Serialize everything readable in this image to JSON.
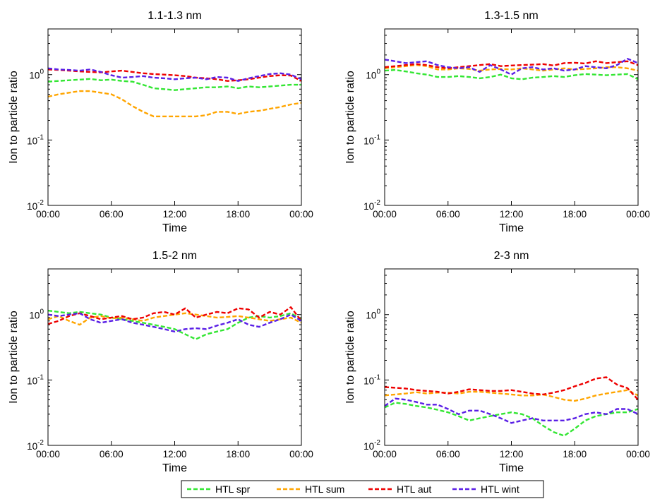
{
  "chart_data": [
    {
      "type": "line",
      "title": "1.1-1.3 nm",
      "xlabel": "Time",
      "ylabel": "Ion to particle ratio",
      "yscale": "log",
      "ylim": [
        0.01,
        5
      ],
      "xlim": [
        0,
        24
      ],
      "xticks": [
        0,
        6,
        12,
        18,
        24
      ],
      "xtick_labels": [
        "00:00",
        "06:00",
        "12:00",
        "18:00",
        "00:00"
      ],
      "yticks": [
        0.01,
        0.1,
        1
      ],
      "grid": false,
      "series": [
        {
          "name": "HTL spr",
          "x": [
            0,
            1,
            2,
            3,
            4,
            5,
            6,
            7,
            8,
            9,
            10,
            11,
            12,
            13,
            14,
            15,
            16,
            17,
            18,
            19,
            20,
            21,
            22,
            23,
            24
          ],
          "values": [
            0.78,
            0.8,
            0.82,
            0.84,
            0.86,
            0.82,
            0.84,
            0.8,
            0.78,
            0.7,
            0.62,
            0.6,
            0.58,
            0.6,
            0.62,
            0.64,
            0.64,
            0.66,
            0.62,
            0.66,
            0.64,
            0.66,
            0.68,
            0.7,
            0.7
          ]
        },
        {
          "name": "HTL sum",
          "x": [
            0,
            1,
            2,
            3,
            4,
            5,
            6,
            7,
            8,
            9,
            10,
            11,
            12,
            13,
            14,
            15,
            16,
            17,
            18,
            19,
            20,
            21,
            22,
            23,
            24
          ],
          "values": [
            0.46,
            0.5,
            0.53,
            0.56,
            0.56,
            0.53,
            0.5,
            0.42,
            0.33,
            0.27,
            0.23,
            0.23,
            0.23,
            0.23,
            0.23,
            0.24,
            0.27,
            0.27,
            0.25,
            0.27,
            0.28,
            0.3,
            0.32,
            0.35,
            0.37
          ]
        },
        {
          "name": "HTL aut",
          "x": [
            0,
            1,
            2,
            3,
            4,
            5,
            6,
            7,
            8,
            9,
            10,
            11,
            12,
            13,
            14,
            15,
            16,
            17,
            18,
            19,
            20,
            21,
            22,
            23,
            24
          ],
          "values": [
            1.2,
            1.18,
            1.15,
            1.12,
            1.1,
            1.08,
            1.12,
            1.15,
            1.1,
            1.05,
            1.02,
            1.0,
            0.98,
            0.95,
            0.9,
            0.88,
            0.85,
            0.8,
            0.82,
            0.85,
            0.9,
            0.95,
            0.98,
            0.97,
            0.8
          ]
        },
        {
          "name": "HTL wint",
          "x": [
            0,
            1,
            2,
            3,
            4,
            5,
            6,
            7,
            8,
            9,
            10,
            11,
            12,
            13,
            14,
            15,
            16,
            17,
            18,
            19,
            20,
            21,
            22,
            23,
            24
          ],
          "values": [
            1.25,
            1.2,
            1.18,
            1.15,
            1.2,
            1.1,
            0.98,
            0.9,
            0.92,
            0.95,
            0.9,
            0.88,
            0.85,
            0.88,
            0.9,
            0.85,
            0.92,
            0.9,
            0.8,
            0.88,
            0.95,
            1.02,
            1.05,
            1.0,
            0.85
          ]
        }
      ]
    },
    {
      "type": "line",
      "title": "1.3-1.5 nm",
      "xlabel": "Time",
      "ylabel": "Ion to particle ratio",
      "yscale": "log",
      "ylim": [
        0.01,
        5
      ],
      "xlim": [
        0,
        24
      ],
      "xticks": [
        0,
        6,
        12,
        18,
        24
      ],
      "xtick_labels": [
        "00:00",
        "06:00",
        "12:00",
        "18:00",
        "00:00"
      ],
      "yticks": [
        0.01,
        0.1,
        1
      ],
      "grid": false,
      "series": [
        {
          "name": "HTL spr",
          "x": [
            0,
            1,
            2,
            3,
            4,
            5,
            6,
            7,
            8,
            9,
            10,
            11,
            12,
            13,
            14,
            15,
            16,
            17,
            18,
            19,
            20,
            21,
            22,
            23,
            24
          ],
          "values": [
            1.15,
            1.18,
            1.12,
            1.05,
            1.0,
            0.92,
            0.92,
            0.95,
            0.92,
            0.88,
            0.92,
            1.0,
            0.88,
            0.85,
            0.9,
            0.92,
            0.95,
            0.92,
            0.98,
            1.02,
            1.0,
            0.98,
            1.0,
            1.02,
            0.85
          ]
        },
        {
          "name": "HTL sum",
          "x": [
            0,
            1,
            2,
            3,
            4,
            5,
            6,
            7,
            8,
            9,
            10,
            11,
            12,
            13,
            14,
            15,
            16,
            17,
            18,
            19,
            20,
            21,
            22,
            23,
            24
          ],
          "values": [
            1.25,
            1.3,
            1.35,
            1.4,
            1.35,
            1.2,
            1.2,
            1.25,
            1.22,
            1.15,
            1.2,
            1.22,
            1.2,
            1.25,
            1.2,
            1.15,
            1.2,
            1.25,
            1.2,
            1.22,
            1.25,
            1.3,
            1.3,
            1.25,
            1.15
          ]
        },
        {
          "name": "HTL aut",
          "x": [
            0,
            1,
            2,
            3,
            4,
            5,
            6,
            7,
            8,
            9,
            10,
            11,
            12,
            13,
            14,
            15,
            16,
            17,
            18,
            19,
            20,
            21,
            22,
            23,
            24
          ],
          "values": [
            1.3,
            1.35,
            1.4,
            1.45,
            1.4,
            1.3,
            1.25,
            1.3,
            1.35,
            1.4,
            1.45,
            1.35,
            1.38,
            1.4,
            1.42,
            1.45,
            1.38,
            1.5,
            1.52,
            1.48,
            1.6,
            1.5,
            1.55,
            1.6,
            1.4
          ]
        },
        {
          "name": "HTL wint",
          "x": [
            0,
            1,
            2,
            3,
            4,
            5,
            6,
            7,
            8,
            9,
            10,
            11,
            12,
            13,
            14,
            15,
            16,
            17,
            18,
            19,
            20,
            21,
            22,
            23,
            24
          ],
          "values": [
            1.7,
            1.6,
            1.5,
            1.55,
            1.6,
            1.4,
            1.3,
            1.25,
            1.3,
            1.1,
            1.4,
            1.2,
            1.0,
            1.25,
            1.3,
            1.2,
            1.25,
            1.15,
            1.2,
            1.35,
            1.3,
            1.25,
            1.4,
            1.75,
            1.5
          ]
        }
      ]
    },
    {
      "type": "line",
      "title": "1.5-2 nm",
      "xlabel": "Time",
      "ylabel": "Ion to particle ratio",
      "yscale": "log",
      "ylim": [
        0.01,
        5
      ],
      "xlim": [
        0,
        24
      ],
      "xticks": [
        0,
        6,
        12,
        18,
        24
      ],
      "xtick_labels": [
        "00:00",
        "06:00",
        "12:00",
        "18:00",
        "00:00"
      ],
      "yticks": [
        0.01,
        0.1,
        1
      ],
      "grid": false,
      "series": [
        {
          "name": "HTL spr",
          "x": [
            0,
            1,
            2,
            3,
            4,
            5,
            6,
            7,
            8,
            9,
            10,
            11,
            12,
            13,
            14,
            15,
            16,
            17,
            18,
            19,
            20,
            21,
            22,
            23,
            24
          ],
          "values": [
            1.15,
            1.1,
            1.05,
            1.1,
            1.05,
            1.0,
            0.9,
            0.85,
            0.8,
            0.75,
            0.7,
            0.65,
            0.6,
            0.5,
            0.42,
            0.5,
            0.55,
            0.6,
            0.75,
            0.9,
            0.95,
            0.9,
            0.95,
            1.05,
            0.85
          ]
        },
        {
          "name": "HTL sum",
          "x": [
            0,
            1,
            2,
            3,
            4,
            5,
            6,
            7,
            8,
            9,
            10,
            11,
            12,
            13,
            14,
            15,
            16,
            17,
            18,
            19,
            20,
            21,
            22,
            23,
            24
          ],
          "values": [
            0.85,
            0.95,
            0.8,
            0.7,
            0.9,
            0.95,
            0.88,
            0.9,
            0.85,
            0.8,
            0.9,
            0.95,
            1.0,
            1.05,
            1.0,
            0.95,
            0.9,
            0.92,
            0.95,
            0.9,
            0.85,
            0.8,
            0.85,
            0.9,
            0.75
          ]
        },
        {
          "name": "HTL aut",
          "x": [
            0,
            1,
            2,
            3,
            4,
            5,
            6,
            7,
            8,
            9,
            10,
            11,
            12,
            13,
            14,
            15,
            16,
            17,
            18,
            19,
            20,
            21,
            22,
            23,
            24
          ],
          "values": [
            0.72,
            0.8,
            0.95,
            1.05,
            0.95,
            0.85,
            0.9,
            0.95,
            0.85,
            0.9,
            1.05,
            1.1,
            1.0,
            1.25,
            0.9,
            1.0,
            1.1,
            1.05,
            1.25,
            1.2,
            0.9,
            1.1,
            1.0,
            1.3,
            0.8
          ]
        },
        {
          "name": "HTL wint",
          "x": [
            0,
            1,
            2,
            3,
            4,
            5,
            6,
            7,
            8,
            9,
            10,
            11,
            12,
            13,
            14,
            15,
            16,
            17,
            18,
            19,
            20,
            21,
            22,
            23,
            24
          ],
          "values": [
            1.0,
            0.95,
            1.0,
            1.05,
            0.85,
            0.75,
            0.8,
            0.85,
            0.75,
            0.7,
            0.65,
            0.6,
            0.55,
            0.6,
            0.62,
            0.6,
            0.68,
            0.75,
            0.85,
            0.7,
            0.65,
            0.75,
            0.85,
            1.0,
            0.8
          ]
        }
      ]
    },
    {
      "type": "line",
      "title": "2-3 nm",
      "xlabel": "Time",
      "ylabel": "Ion to particle ratio",
      "yscale": "log",
      "ylim": [
        0.01,
        5
      ],
      "xlim": [
        0,
        24
      ],
      "xticks": [
        0,
        6,
        12,
        18,
        24
      ],
      "xtick_labels": [
        "00:00",
        "06:00",
        "12:00",
        "18:00",
        "00:00"
      ],
      "yticks": [
        0.01,
        0.1,
        1
      ],
      "grid": false,
      "series": [
        {
          "name": "HTL spr",
          "x": [
            0,
            1,
            2,
            3,
            4,
            5,
            6,
            7,
            8,
            9,
            10,
            11,
            12,
            13,
            14,
            15,
            16,
            17,
            18,
            19,
            20,
            21,
            22,
            23,
            24
          ],
          "values": [
            0.038,
            0.045,
            0.043,
            0.04,
            0.038,
            0.035,
            0.032,
            0.028,
            0.024,
            0.026,
            0.028,
            0.03,
            0.032,
            0.03,
            0.026,
            0.02,
            0.016,
            0.014,
            0.018,
            0.024,
            0.028,
            0.03,
            0.032,
            0.032,
            0.036
          ]
        },
        {
          "name": "HTL sum",
          "x": [
            0,
            1,
            2,
            3,
            4,
            5,
            6,
            7,
            8,
            9,
            10,
            11,
            12,
            13,
            14,
            15,
            16,
            17,
            18,
            19,
            20,
            21,
            22,
            23,
            24
          ],
          "values": [
            0.058,
            0.06,
            0.062,
            0.065,
            0.062,
            0.064,
            0.064,
            0.062,
            0.066,
            0.066,
            0.064,
            0.062,
            0.06,
            0.058,
            0.058,
            0.06,
            0.055,
            0.05,
            0.048,
            0.052,
            0.058,
            0.062,
            0.066,
            0.07,
            0.058
          ]
        },
        {
          "name": "HTL aut",
          "x": [
            0,
            1,
            2,
            3,
            4,
            5,
            6,
            7,
            8,
            9,
            10,
            11,
            12,
            13,
            14,
            15,
            16,
            17,
            18,
            19,
            20,
            21,
            22,
            23,
            24
          ],
          "values": [
            0.078,
            0.076,
            0.074,
            0.07,
            0.068,
            0.066,
            0.062,
            0.066,
            0.072,
            0.07,
            0.068,
            0.068,
            0.07,
            0.066,
            0.062,
            0.06,
            0.064,
            0.07,
            0.08,
            0.09,
            0.105,
            0.11,
            0.085,
            0.075,
            0.05
          ]
        },
        {
          "name": "HTL wint",
          "x": [
            0,
            1,
            2,
            3,
            4,
            5,
            6,
            7,
            8,
            9,
            10,
            11,
            12,
            13,
            14,
            15,
            16,
            17,
            18,
            19,
            20,
            21,
            22,
            23,
            24
          ],
          "values": [
            0.04,
            0.052,
            0.05,
            0.046,
            0.042,
            0.042,
            0.036,
            0.03,
            0.034,
            0.034,
            0.03,
            0.026,
            0.022,
            0.024,
            0.026,
            0.024,
            0.024,
            0.024,
            0.026,
            0.03,
            0.032,
            0.03,
            0.036,
            0.036,
            0.03
          ]
        }
      ]
    }
  ],
  "legend": {
    "placement": "bottom-center",
    "entries": [
      "HTL spr",
      "HTL sum",
      "HTL aut",
      "HTL wint"
    ]
  },
  "colors": {
    "HTL spr": "#33e633",
    "HTL sum": "#ffa500",
    "HTL aut": "#ee0000",
    "HTL wint": "#5a1fe6"
  }
}
